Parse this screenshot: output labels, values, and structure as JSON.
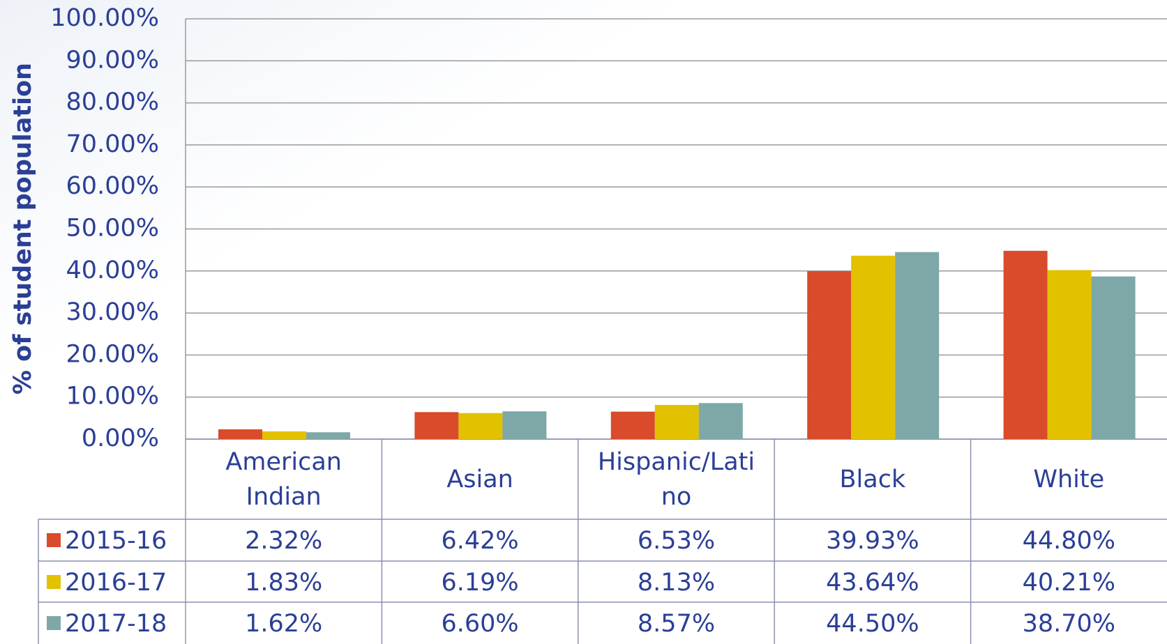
{
  "chart_data": {
    "type": "bar",
    "y_label": "% of student population",
    "categories": [
      "American Indian",
      "Asian",
      "Hispanic/Latino",
      "Black",
      "White"
    ],
    "series": [
      {
        "name": "2015-16",
        "color": "#d94b2b",
        "values": [
          2.32,
          6.42,
          6.53,
          39.93,
          44.8
        ],
        "value_labels": [
          "2.32%",
          "6.42%",
          "6.53%",
          "39.93%",
          "44.80%"
        ]
      },
      {
        "name": "2016-17",
        "color": "#e2c100",
        "values": [
          1.83,
          6.19,
          8.13,
          43.64,
          40.21
        ],
        "value_labels": [
          "1.83%",
          "6.19%",
          "8.13%",
          "43.64%",
          "40.21%"
        ]
      },
      {
        "name": "2017-18",
        "color": "#7ea8a8",
        "values": [
          1.62,
          6.6,
          8.57,
          44.5,
          38.7
        ],
        "value_labels": [
          "1.62%",
          "6.60%",
          "8.57%",
          "44.50%",
          "38.70%"
        ]
      }
    ],
    "ylim": [
      0,
      100
    ],
    "yticks": [
      {
        "value": 0,
        "label": "0.00%"
      },
      {
        "value": 10,
        "label": "10.00%"
      },
      {
        "value": 20,
        "label": "20.00%"
      },
      {
        "value": 30,
        "label": "30.00%"
      },
      {
        "value": 40,
        "label": "40.00%"
      },
      {
        "value": 50,
        "label": "50.00%"
      },
      {
        "value": 60,
        "label": "60.00%"
      },
      {
        "value": 70,
        "label": "70.00%"
      },
      {
        "value": 80,
        "label": "80.00%"
      },
      {
        "value": 90,
        "label": "90.00%"
      },
      {
        "value": 100,
        "label": "100.00%"
      }
    ],
    "grid": true
  }
}
